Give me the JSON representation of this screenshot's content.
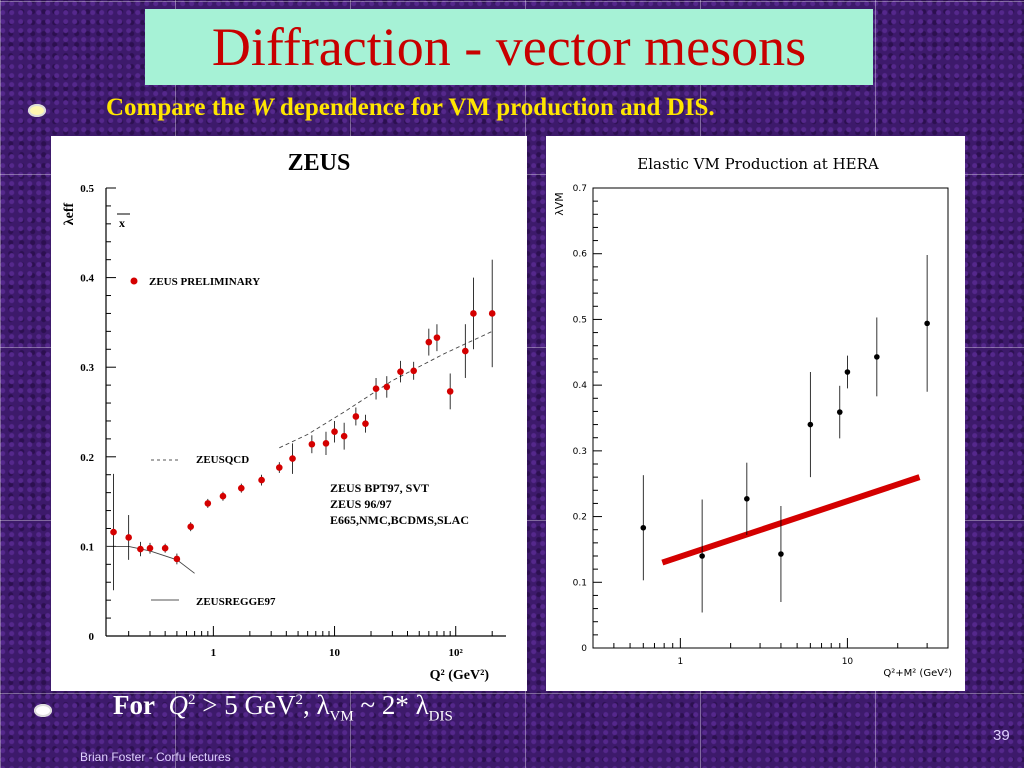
{
  "slide": {
    "title": "Diffraction - vector mesons",
    "bullet1": {
      "pre": "Compare the ",
      "w": "W",
      "post": " dependence for VM production and DIS."
    },
    "bullet2": {
      "for": "For",
      "q": "Q",
      "sup2": "2",
      "gt": " > 5 GeV",
      "sup2b": "2",
      "comma": ", λ",
      "sub_vm": "VM",
      "mid": " ~ 2* λ",
      "sub_dis": "DIS"
    },
    "footer": "Brian Foster - Corfu lectures",
    "page_number": "39"
  },
  "chart_data": [
    {
      "type": "scatter",
      "title": "ZEUS",
      "xlabel": "Q² (GeV²)",
      "ylabel": "λeff",
      "x_axis_label_sub": "",
      "xscale": "log",
      "xlim": [
        0.13,
        260
      ],
      "ylim": [
        0,
        0.5
      ],
      "x_tick_labels": [
        {
          "label": "1",
          "value": 1
        },
        {
          "label": "10",
          "value": 10
        },
        {
          "label": "10²",
          "value": 100
        }
      ],
      "y_tick_labels": [
        {
          "label": "0",
          "value": 0
        },
        {
          "label": "0.1",
          "value": 0.1
        },
        {
          "label": "0.2",
          "value": 0.2
        },
        {
          "label": "0.3",
          "value": 0.3
        },
        {
          "label": "0.4",
          "value": 0.4
        },
        {
          "label": "0.5",
          "value": 0.5
        }
      ],
      "xbar_label": "x",
      "legend": [
        {
          "text": "ZEUS PRELIMINARY",
          "marker": "red-dot"
        },
        {
          "text": "ZEUSQCD",
          "marker": "dashed-line"
        },
        {
          "text": "ZEUSREGGE97",
          "marker": "solid-line"
        }
      ],
      "annotation_lines": [
        "ZEUS BPT97, SVT",
        "ZEUS 96/97",
        "E665,NMC,BCDMS,SLAC"
      ],
      "series": [
        {
          "name": "ZEUS PRELIMINARY",
          "color": "#d40000",
          "points": [
            {
              "x": 0.15,
              "y": 0.116,
              "err": 0.065
            },
            {
              "x": 0.2,
              "y": 0.11,
              "err": 0.025
            },
            {
              "x": 0.25,
              "y": 0.097,
              "err": 0.008
            },
            {
              "x": 0.3,
              "y": 0.098,
              "err": 0.006
            },
            {
              "x": 0.4,
              "y": 0.098,
              "err": 0.005
            },
            {
              "x": 0.5,
              "y": 0.086,
              "err": 0.006
            },
            {
              "x": 0.65,
              "y": 0.122,
              "err": 0.005
            },
            {
              "x": 0.9,
              "y": 0.148,
              "err": 0.005
            },
            {
              "x": 1.2,
              "y": 0.156,
              "err": 0.005
            },
            {
              "x": 1.7,
              "y": 0.165,
              "err": 0.005
            },
            {
              "x": 2.5,
              "y": 0.174,
              "err": 0.006
            },
            {
              "x": 3.5,
              "y": 0.188,
              "err": 0.006
            },
            {
              "x": 4.5,
              "y": 0.198,
              "err": 0.017
            },
            {
              "x": 6.5,
              "y": 0.214,
              "err": 0.01
            },
            {
              "x": 8.5,
              "y": 0.215,
              "err": 0.013
            },
            {
              "x": 10,
              "y": 0.228,
              "err": 0.012
            },
            {
              "x": 12,
              "y": 0.223,
              "err": 0.015
            },
            {
              "x": 15,
              "y": 0.245,
              "err": 0.01
            },
            {
              "x": 18,
              "y": 0.237,
              "err": 0.01
            },
            {
              "x": 22,
              "y": 0.276,
              "err": 0.012
            },
            {
              "x": 27,
              "y": 0.278,
              "err": 0.012
            },
            {
              "x": 35,
              "y": 0.295,
              "err": 0.012
            },
            {
              "x": 45,
              "y": 0.296,
              "err": 0.01
            },
            {
              "x": 60,
              "y": 0.328,
              "err": 0.015
            },
            {
              "x": 70,
              "y": 0.333,
              "err": 0.015
            },
            {
              "x": 90,
              "y": 0.273,
              "err": 0.02
            },
            {
              "x": 120,
              "y": 0.318,
              "err": 0.03
            },
            {
              "x": 140,
              "y": 0.36,
              "err": 0.04
            },
            {
              "x": 200,
              "y": 0.36,
              "err": 0.06
            }
          ]
        },
        {
          "name": "ZEUSQCD",
          "style": "dashed",
          "points": [
            {
              "x": 3.5,
              "y": 0.21
            },
            {
              "x": 6,
              "y": 0.225
            },
            {
              "x": 12,
              "y": 0.25
            },
            {
              "x": 30,
              "y": 0.285
            },
            {
              "x": 80,
              "y": 0.315
            },
            {
              "x": 200,
              "y": 0.34
            }
          ]
        },
        {
          "name": "ZEUSREGGE97",
          "style": "solid",
          "points": [
            {
              "x": 0.13,
              "y": 0.1
            },
            {
              "x": 0.2,
              "y": 0.1
            },
            {
              "x": 0.3,
              "y": 0.095
            },
            {
              "x": 0.5,
              "y": 0.085
            },
            {
              "x": 0.7,
              "y": 0.07
            }
          ]
        }
      ]
    },
    {
      "type": "scatter",
      "title": "Elastic VM Production at HERA",
      "xlabel": "Q²+M² (GeV²)",
      "ylabel": "λVM",
      "xscale": "log",
      "xlim": [
        0.3,
        40
      ],
      "ylim": [
        0,
        0.7
      ],
      "x_tick_labels": [
        {
          "label": "1",
          "value": 1
        },
        {
          "label": "10",
          "value": 10
        }
      ],
      "y_tick_labels": [
        {
          "label": "0",
          "value": 0
        },
        {
          "label": "0.1",
          "value": 0.1
        },
        {
          "label": "0.2",
          "value": 0.2
        },
        {
          "label": "0.3",
          "value": 0.3
        },
        {
          "label": "0.4",
          "value": 0.4
        },
        {
          "label": "0.5",
          "value": 0.5
        },
        {
          "label": "0.6",
          "value": 0.6
        },
        {
          "label": "0.7",
          "value": 0.7
        }
      ],
      "series": [
        {
          "color": "#000000",
          "points": [
            {
              "x": 0.6,
              "y": 0.183,
              "err": 0.08
            },
            {
              "x": 1.35,
              "y": 0.14,
              "err": 0.086
            },
            {
              "x": 2.5,
              "y": 0.227,
              "err": 0.055
            },
            {
              "x": 4,
              "y": 0.143,
              "err": 0.073
            },
            {
              "x": 6,
              "y": 0.34,
              "err": 0.08
            },
            {
              "x": 9,
              "y": 0.359,
              "err": 0.04
            },
            {
              "x": 10,
              "y": 0.42,
              "err": 0.025
            },
            {
              "x": 15,
              "y": 0.443,
              "err": 0.06
            },
            {
              "x": 30,
              "y": 0.494,
              "err": 0.104
            }
          ]
        },
        {
          "color": "#d40000",
          "style": "thick-line",
          "points": [
            {
              "x": 0.78,
              "y": 0.13
            },
            {
              "x": 27,
              "y": 0.26
            }
          ]
        }
      ]
    }
  ]
}
